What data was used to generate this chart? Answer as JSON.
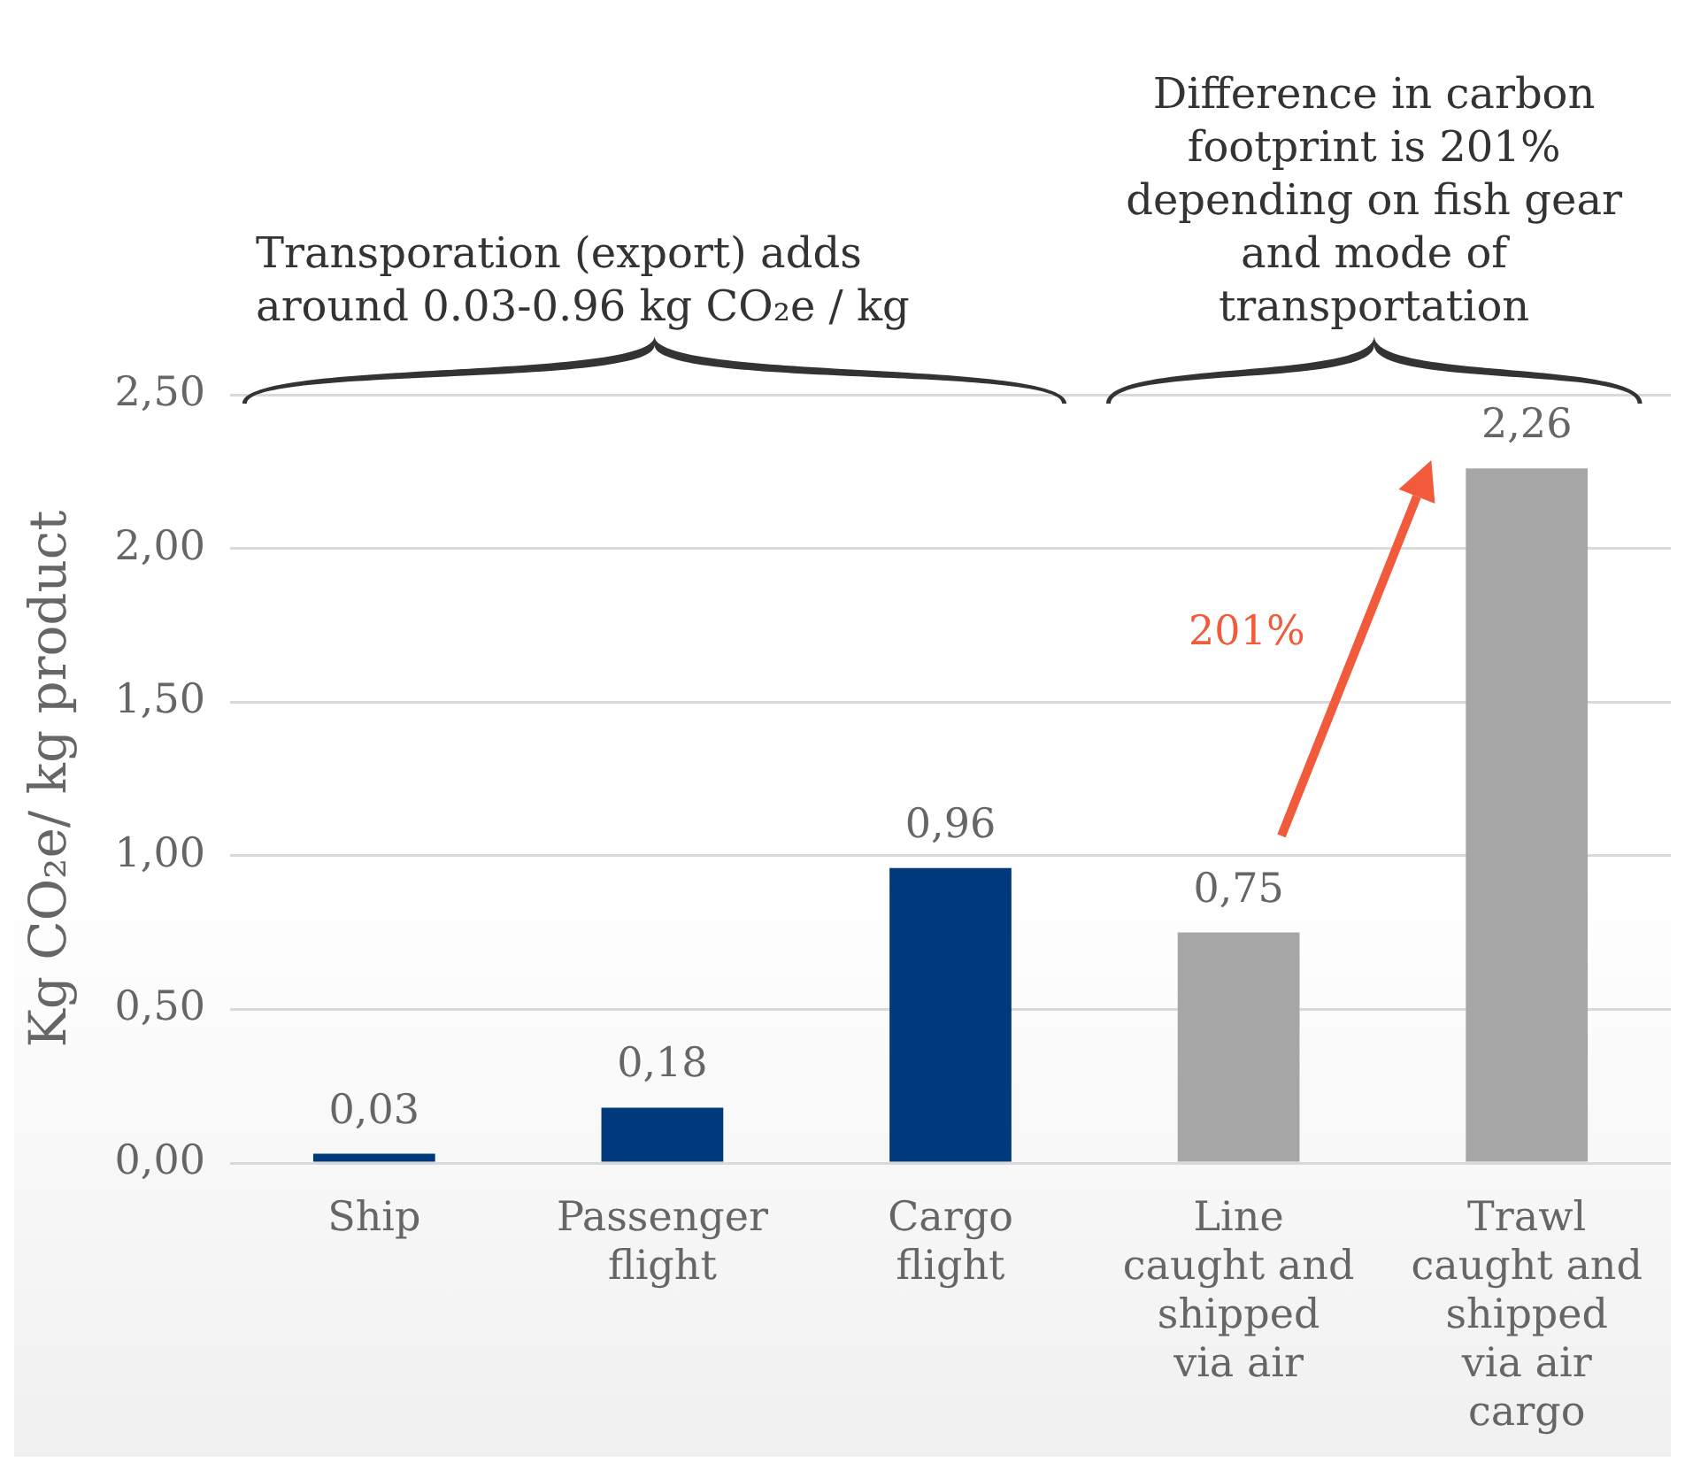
{
  "chart_data": {
    "type": "bar",
    "ylabel": "Kg CO₂e/ kg product",
    "categories": [
      "Ship",
      "Passenger flight",
      "Cargo flight",
      "Line caught and shipped via air",
      "Trawl caught and shipped via air cargo"
    ],
    "values": [
      0.03,
      0.18,
      0.96,
      0.75,
      2.26
    ],
    "colors": [
      "#003a7d",
      "#003a7d",
      "#003a7d",
      "#a6a6a6",
      "#a6a6a6"
    ],
    "value_labels": [
      "0,03",
      "0,18",
      "0,96",
      "0,75",
      "2,26"
    ],
    "ylim": [
      0,
      2.5
    ],
    "yticks": [
      {
        "value": 0,
        "label": "0,00"
      },
      {
        "value": 0.5,
        "label": "0,50"
      },
      {
        "value": 1,
        "label": "1,00"
      },
      {
        "value": 1.5,
        "label": "1,50"
      },
      {
        "value": 2,
        "label": "2,00"
      },
      {
        "value": 2.5,
        "label": "2,50"
      }
    ],
    "grid": "y",
    "legend": false,
    "annotations": [
      "Transporation (export) adds around 0.03-0.96 kg CO₂e / kg",
      "Difference in carbon footprint is 201% depending on fish gear and mode of transportation",
      "201%"
    ]
  }
}
